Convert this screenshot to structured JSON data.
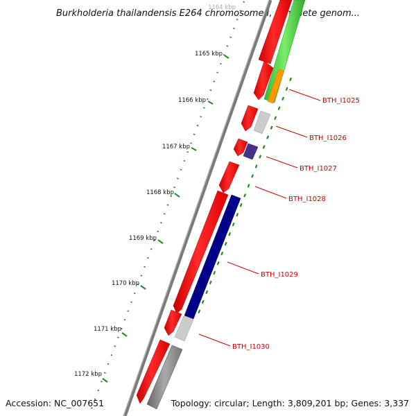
{
  "title": "Burkholderia thailandensis E264 chromosome I, complete genom...",
  "accession": "Accession: NC_007651",
  "topology": "Topology: circular; Length: 3,809,201 bp; Genes: 3,337",
  "scale_labels": [
    "1164 kbp",
    "1165 kbp",
    "1166 kbp",
    "1167 kbp",
    "1168 kbp",
    "1169 kbp",
    "1170 kbp",
    "1171 kbp",
    "1172 kbp"
  ],
  "gene_labels": [
    "BTH_I1025",
    "BTH_I1026",
    "BTH_I1027",
    "BTH_I1028",
    "BTH_I1029",
    "BTH_I1030"
  ],
  "colors": {
    "backbone": "#888888",
    "cds": "#ff0000",
    "gene_green": "#44cc44",
    "gene_orange": "#ff9900",
    "gene_navy": "#000088",
    "gene_purple": "#443388",
    "gene_lightgray": "#cccccc",
    "gene_darkgray": "#666666",
    "ticks": "#228822",
    "label": "#cc0000"
  }
}
